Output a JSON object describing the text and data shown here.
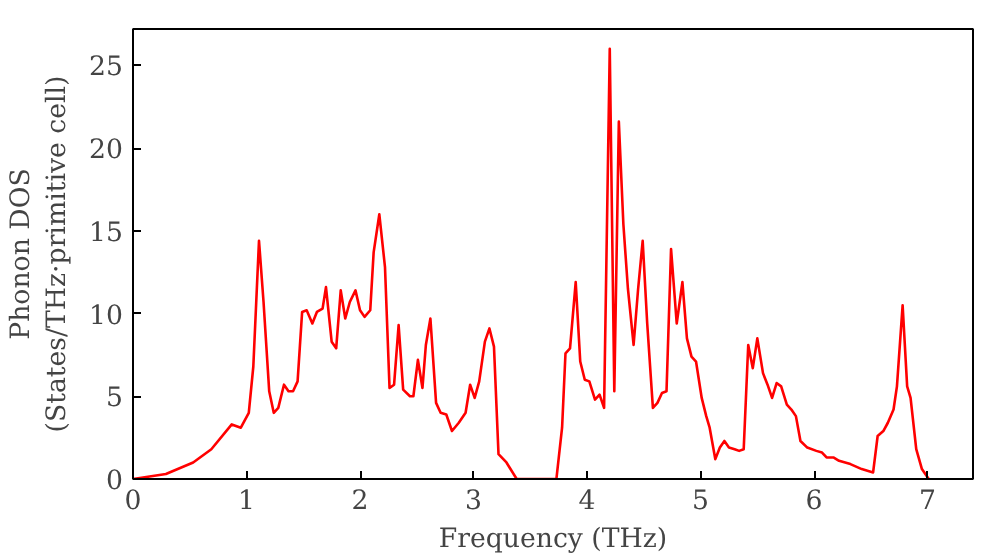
{
  "chart_data": {
    "type": "line",
    "xlabel": "Frequency (THz)",
    "ylabel": "Phonon DOS\n(States/THz·primitive cell)",
    "xlim": [
      0,
      7.4
    ],
    "ylim": [
      0,
      27.2
    ],
    "xticks": [
      0,
      1,
      2,
      3,
      4,
      5,
      6,
      7
    ],
    "yticks": [
      0,
      5,
      10,
      15,
      20,
      25
    ],
    "grid": false,
    "marker": "none",
    "line_style": "solid",
    "series": [
      {
        "color": "#ff0000",
        "x": [
          0,
          0.29,
          0.53,
          0.69,
          0.87,
          0.95,
          1.02,
          1.06,
          1.11,
          1.15,
          1.2,
          1.24,
          1.28,
          1.33,
          1.37,
          1.41,
          1.45,
          1.49,
          1.53,
          1.58,
          1.62,
          1.67,
          1.7,
          1.75,
          1.79,
          1.83,
          1.87,
          1.91,
          1.96,
          2.0,
          2.04,
          2.09,
          2.12,
          2.17,
          2.22,
          2.26,
          2.3,
          2.34,
          2.38,
          2.44,
          2.47,
          2.51,
          2.55,
          2.58,
          2.62,
          2.67,
          2.71,
          2.76,
          2.81,
          2.87,
          2.93,
          2.97,
          3.01,
          3.05,
          3.1,
          3.14,
          3.18,
          3.22,
          3.29,
          3.38,
          3.73,
          3.78,
          3.81,
          3.85,
          3.9,
          3.94,
          3.98,
          4.02,
          4.07,
          4.11,
          4.15,
          4.2,
          4.24,
          4.28,
          4.32,
          4.36,
          4.41,
          4.45,
          4.49,
          4.53,
          4.58,
          4.62,
          4.66,
          4.7,
          4.74,
          4.79,
          4.84,
          4.88,
          4.92,
          4.96,
          5.01,
          5.05,
          5.08,
          5.13,
          5.17,
          5.21,
          5.25,
          5.3,
          5.34,
          5.38,
          5.42,
          5.46,
          5.5,
          5.55,
          5.59,
          5.63,
          5.67,
          5.71,
          5.76,
          5.8,
          5.84,
          5.88,
          5.94,
          6.02,
          6.07,
          6.11,
          6.17,
          6.22,
          6.32,
          6.42,
          6.52,
          6.56,
          6.61,
          6.65,
          6.7,
          6.73,
          6.78,
          6.82,
          6.85,
          6.9,
          6.95,
          7.01
        ],
        "values": [
          0,
          0.3,
          1.0,
          1.8,
          3.3,
          3.1,
          4.0,
          6.8,
          14.4,
          10.7,
          5.3,
          4.0,
          4.3,
          5.7,
          5.3,
          5.3,
          5.9,
          10.1,
          10.2,
          9.4,
          10.1,
          10.3,
          11.6,
          8.3,
          7.9,
          11.4,
          9.7,
          10.7,
          11.4,
          10.2,
          9.8,
          10.2,
          13.7,
          16.0,
          12.8,
          5.5,
          5.7,
          9.3,
          5.4,
          5.0,
          5.0,
          7.2,
          5.5,
          8.1,
          9.7,
          4.6,
          4.0,
          3.9,
          2.9,
          3.4,
          4.0,
          5.7,
          4.9,
          5.9,
          8.3,
          9.1,
          8.0,
          1.5,
          1.0,
          0,
          0,
          3.1,
          7.6,
          7.9,
          11.9,
          7.1,
          6.0,
          5.9,
          4.8,
          5.1,
          4.3,
          26.0,
          5.3,
          21.6,
          15.4,
          11.5,
          8.1,
          11.5,
          14.4,
          9.4,
          4.3,
          4.6,
          5.2,
          5.3,
          13.9,
          9.4,
          11.9,
          8.5,
          7.4,
          7.1,
          4.9,
          3.8,
          3.1,
          1.2,
          1.9,
          2.3,
          1.9,
          1.8,
          1.7,
          1.8,
          8.1,
          6.7,
          8.5,
          6.4,
          5.7,
          4.9,
          5.8,
          5.6,
          4.5,
          4.2,
          3.8,
          2.3,
          1.9,
          1.7,
          1.6,
          1.3,
          1.3,
          1.1,
          0.9,
          0.6,
          0.4,
          2.6,
          2.9,
          3.4,
          4.2,
          5.6,
          10.5,
          5.6,
          4.9,
          1.8,
          0.6,
          0
        ]
      }
    ]
  }
}
